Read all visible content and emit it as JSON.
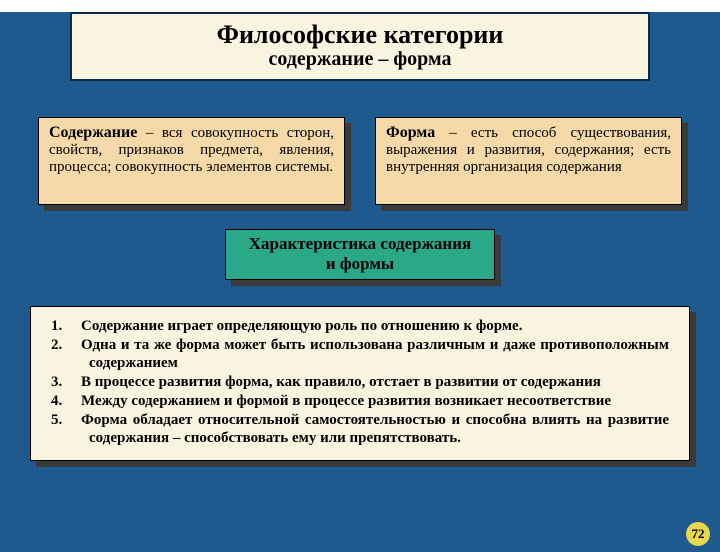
{
  "colors": {
    "page_bg": "#1e5a8e",
    "header_bg": "#f8f4e0",
    "header_border": "#0a2a4a",
    "def_bg": "#f5d9a8",
    "shadow": "#3a3a3a",
    "char_bg": "#2aa88a",
    "list_bg": "#f8f4e0",
    "pagenum_bg": "#e8d850",
    "text": "#000000"
  },
  "header": {
    "title": "Философские категории",
    "subtitle": "содержание – форма"
  },
  "defLeft": {
    "bold": "Содержание",
    "rest": " – вся совокупность сторон, свойств, признаков предмета, явления, процесса; совокупность элементов системы."
  },
  "defRight": {
    "bold": "Форма",
    "rest": " – есть способ существования, выражения и развития, содержания; есть внутренняя организация содержания"
  },
  "charBox": {
    "line1": "Характеристика содержания",
    "line2": "и формы"
  },
  "list": {
    "items": [
      "Содержание играет определяющую роль по отношению к форме.",
      "Одна и та же форма может быть использована различным и даже противоположным содержанием",
      "В процессе развития форма, как правило, отстает в развитии от содержания",
      "Между содержанием и формой в процессе развития возникает несоответствие",
      "Форма обладает относительной самостоятельностью и способна влиять на развитие содержания – способствовать ему или препятствовать."
    ]
  },
  "pageNumber": "72"
}
